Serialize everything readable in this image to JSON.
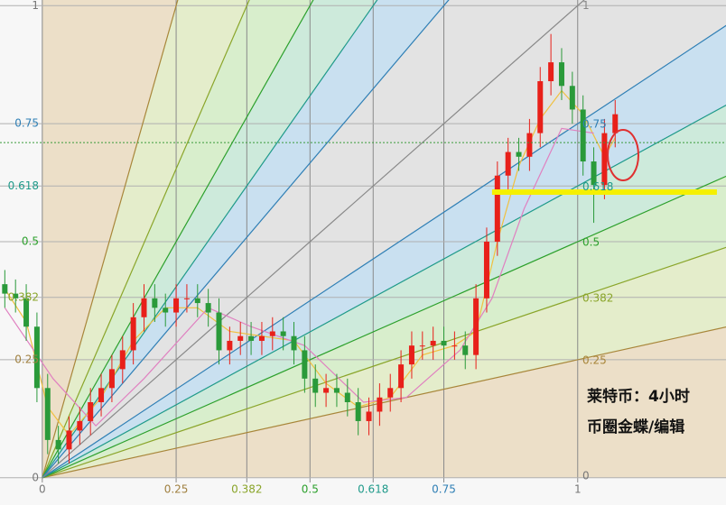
{
  "chart_data": {
    "type": "candlestick",
    "xlim": [
      -0.079,
      1.277
    ],
    "ylim": [
      -0.01,
      1.012
    ],
    "xticks": [
      0,
      0.25,
      0.382,
      0.5,
      0.618,
      0.75,
      1
    ],
    "yticks": [
      0,
      0.25,
      0.382,
      0.5,
      0.618,
      0.75,
      1
    ],
    "tick_colors": [
      "#777777",
      "#a08040",
      "#8aa52a",
      "#2ca02c",
      "#1f9a8a",
      "#2f7fb5",
      "#777777"
    ],
    "x": [
      -0.07,
      -0.05,
      -0.03,
      -0.01,
      0.01,
      0.03,
      0.05,
      0.07,
      0.09,
      0.11,
      0.13,
      0.15,
      0.17,
      0.19,
      0.21,
      0.23,
      0.25,
      0.27,
      0.29,
      0.31,
      0.33,
      0.35,
      0.37,
      0.39,
      0.41,
      0.43,
      0.45,
      0.47,
      0.49,
      0.51,
      0.53,
      0.55,
      0.57,
      0.59,
      0.61,
      0.63,
      0.65,
      0.67,
      0.69,
      0.71,
      0.73,
      0.75,
      0.77,
      0.79,
      0.81,
      0.83,
      0.85,
      0.87,
      0.89,
      0.91,
      0.93,
      0.95,
      0.97,
      0.99,
      1.01,
      1.03,
      1.05,
      1.07
    ],
    "open": [
      0.41,
      0.39,
      0.38,
      0.32,
      0.19,
      0.08,
      0.06,
      0.1,
      0.12,
      0.16,
      0.19,
      0.23,
      0.27,
      0.34,
      0.38,
      0.36,
      0.35,
      0.38,
      0.38,
      0.37,
      0.35,
      0.27,
      0.29,
      0.3,
      0.29,
      0.3,
      0.31,
      0.3,
      0.27,
      0.21,
      0.18,
      0.19,
      0.18,
      0.16,
      0.12,
      0.14,
      0.17,
      0.19,
      0.24,
      0.28,
      0.28,
      0.29,
      0.28,
      0.28,
      0.26,
      0.38,
      0.5,
      0.64,
      0.69,
      0.68,
      0.73,
      0.84,
      0.88,
      0.83,
      0.78,
      0.67,
      0.62,
      0.73
    ],
    "high": [
      0.44,
      0.42,
      0.41,
      0.35,
      0.22,
      0.11,
      0.13,
      0.15,
      0.19,
      0.22,
      0.26,
      0.3,
      0.37,
      0.41,
      0.41,
      0.39,
      0.41,
      0.41,
      0.41,
      0.4,
      0.38,
      0.32,
      0.33,
      0.33,
      0.33,
      0.34,
      0.34,
      0.33,
      0.3,
      0.24,
      0.22,
      0.22,
      0.21,
      0.19,
      0.17,
      0.2,
      0.22,
      0.27,
      0.31,
      0.31,
      0.32,
      0.32,
      0.31,
      0.31,
      0.41,
      0.53,
      0.67,
      0.72,
      0.72,
      0.76,
      0.87,
      0.94,
      0.91,
      0.86,
      0.81,
      0.7,
      0.76,
      0.8
    ],
    "low": [
      0.36,
      0.35,
      0.29,
      0.16,
      0.05,
      0.03,
      0.03,
      0.07,
      0.09,
      0.13,
      0.16,
      0.2,
      0.24,
      0.31,
      0.33,
      0.32,
      0.32,
      0.35,
      0.34,
      0.32,
      0.24,
      0.24,
      0.26,
      0.26,
      0.26,
      0.27,
      0.27,
      0.24,
      0.18,
      0.15,
      0.15,
      0.15,
      0.13,
      0.09,
      0.09,
      0.11,
      0.14,
      0.16,
      0.21,
      0.25,
      0.25,
      0.25,
      0.25,
      0.23,
      0.23,
      0.35,
      0.47,
      0.61,
      0.65,
      0.65,
      0.7,
      0.81,
      0.8,
      0.75,
      0.64,
      0.54,
      0.59,
      0.7
    ],
    "close": [
      0.39,
      0.38,
      0.32,
      0.19,
      0.08,
      0.06,
      0.1,
      0.12,
      0.16,
      0.19,
      0.23,
      0.27,
      0.34,
      0.38,
      0.36,
      0.35,
      0.38,
      0.38,
      0.37,
      0.35,
      0.27,
      0.29,
      0.3,
      0.29,
      0.3,
      0.31,
      0.3,
      0.27,
      0.21,
      0.18,
      0.19,
      0.18,
      0.16,
      0.12,
      0.14,
      0.17,
      0.19,
      0.24,
      0.28,
      0.28,
      0.29,
      0.28,
      0.28,
      0.26,
      0.38,
      0.5,
      0.64,
      0.69,
      0.68,
      0.73,
      0.84,
      0.88,
      0.83,
      0.78,
      0.67,
      0.62,
      0.73,
      0.77
    ],
    "up_color": "#e8201a",
    "down_color": "#2a9a3a",
    "moving_averages": [
      {
        "color": "#f0c040",
        "x": [
          -0.07,
          -0.03,
          0.01,
          0.05,
          0.11,
          0.17,
          0.23,
          0.29,
          0.35,
          0.41,
          0.47,
          0.53,
          0.59,
          0.65,
          0.71,
          0.77,
          0.81,
          0.85,
          0.89,
          0.93,
          0.97,
          1.01,
          1.05,
          1.07
        ],
        "values": [
          0.4,
          0.33,
          0.15,
          0.09,
          0.17,
          0.29,
          0.36,
          0.36,
          0.31,
          0.3,
          0.29,
          0.2,
          0.15,
          0.17,
          0.26,
          0.28,
          0.31,
          0.5,
          0.66,
          0.76,
          0.82,
          0.77,
          0.68,
          0.72
        ]
      },
      {
        "color": "#e080c0",
        "x": [
          -0.07,
          0.02,
          0.1,
          0.19,
          0.31,
          0.39,
          0.49,
          0.6,
          0.68,
          0.78,
          0.84,
          0.9,
          0.97,
          1.03
        ],
        "values": [
          0.36,
          0.21,
          0.11,
          0.21,
          0.36,
          0.32,
          0.28,
          0.16,
          0.17,
          0.27,
          0.38,
          0.57,
          0.74,
          0.73
        ]
      }
    ],
    "fan": {
      "levels": [
        0.25,
        0.382,
        0.5,
        0.618,
        0.75,
        1
      ],
      "colors": [
        "#a8863a",
        "#8aa52a",
        "#2ca02c",
        "#1f9a8a",
        "#2f7fb5",
        "#888888"
      ],
      "fills": [
        "#ecdfc8",
        "#e4edcb",
        "#d8eecc",
        "#cdeadb",
        "#c9e0f0",
        "#e3e3e3"
      ]
    },
    "price_line": {
      "value": 0.71,
      "color": "#3a9a3a"
    },
    "support_line": {
      "x": [
        0.84,
        1.26
      ],
      "value": 0.605,
      "color": "#f5f000"
    },
    "annotations": [
      "莱特币：4小时",
      "币圈金蝶/编辑"
    ]
  }
}
